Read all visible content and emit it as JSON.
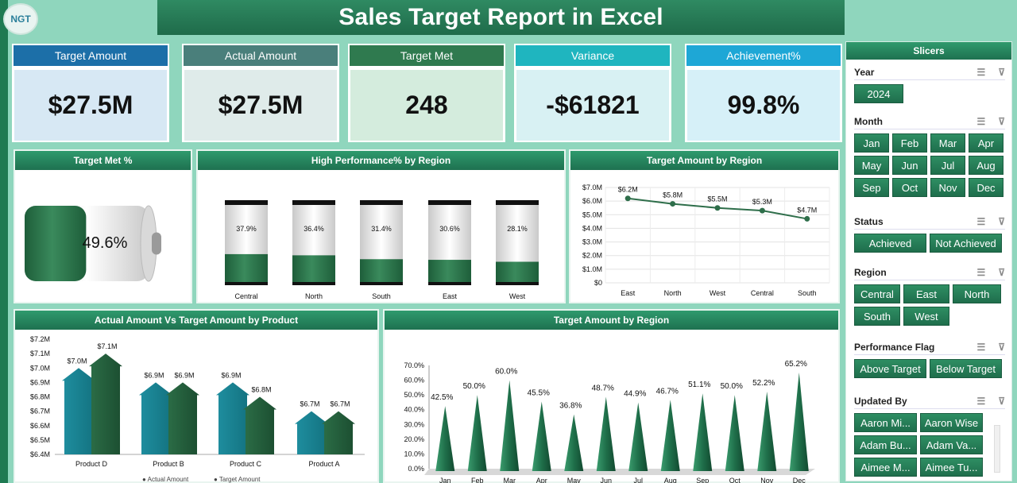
{
  "title": "Sales Target Report in Excel",
  "logo_text": "NGT",
  "kpis": [
    {
      "label": "Target Amount",
      "value": "$27.5M",
      "head": "#1c6fa8",
      "body": "#d7e8f4"
    },
    {
      "label": "Actual Amount",
      "value": "$27.5M",
      "head": "#4a7f7b",
      "body": "#dfebea"
    },
    {
      "label": "Target Met",
      "value": "248",
      "head": "#2f7a4f",
      "body": "#d4ecdd"
    },
    {
      "label": "Variance",
      "value": "-$61821",
      "head": "#1fb5bf",
      "body": "#d8f1f3"
    },
    {
      "label": "Achievement%",
      "value": "99.8%",
      "head": "#1ea7d6",
      "body": "#d6f0f8"
    }
  ],
  "panels": {
    "target_met_pct": "Target Met %",
    "high_perf": "High Performance% by Region",
    "target_by_region_line": "Target Amount by Region",
    "actual_vs_target": "Actual Amount Vs Target Amount by Product",
    "target_by_month": "Target Amount by Region"
  },
  "chart_data": [
    {
      "type": "bar",
      "name": "battery",
      "values": [
        49.6
      ],
      "labels": [
        "49.6%"
      ]
    },
    {
      "type": "bar",
      "categories": [
        "Central",
        "North",
        "South",
        "East",
        "West"
      ],
      "values": [
        37.9,
        36.4,
        31.4,
        30.6,
        28.1
      ],
      "labels": [
        "37.9%",
        "36.4%",
        "31.4%",
        "30.6%",
        "28.1%"
      ],
      "ylim": [
        0,
        100
      ]
    },
    {
      "type": "line",
      "categories": [
        "East",
        "North",
        "West",
        "Central",
        "South"
      ],
      "values": [
        6.2,
        5.8,
        5.5,
        5.3,
        4.7
      ],
      "labels": [
        "$6.2M",
        "$5.8M",
        "$5.5M",
        "$5.3M",
        "$4.7M"
      ],
      "yticks": [
        "$7.0M",
        "$6.0M",
        "$5.0M",
        "$4.0M",
        "$3.0M",
        "$2.0M",
        "$1.0M",
        "$0"
      ],
      "ylim": [
        0,
        7
      ]
    },
    {
      "type": "bar",
      "categories": [
        "Product D",
        "Product B",
        "Product C",
        "Product A"
      ],
      "series": [
        {
          "name": "Actual Amount",
          "values": [
            7.0,
            6.9,
            6.9,
            6.7
          ],
          "labels": [
            "$7.0M",
            "$6.9M",
            "$6.9M",
            "$6.7M"
          ]
        },
        {
          "name": "Target Amount",
          "values": [
            7.1,
            6.9,
            6.8,
            6.7
          ],
          "labels": [
            "$7.1M",
            "$6.9M",
            "$6.8M",
            "$6.7M"
          ]
        }
      ],
      "yticks": [
        "$7.2M",
        "$7.1M",
        "$7.0M",
        "$6.9M",
        "$6.8M",
        "$6.7M",
        "$6.6M",
        "$6.5M",
        "$6.4M"
      ],
      "ylim": [
        6.4,
        7.2
      ]
    },
    {
      "type": "bar",
      "categories": [
        "Jan",
        "Feb",
        "Mar",
        "Apr",
        "May",
        "Jun",
        "Jul",
        "Aug",
        "Sep",
        "Oct",
        "Nov",
        "Dec"
      ],
      "values": [
        42.5,
        50.0,
        60.0,
        45.5,
        36.8,
        48.7,
        44.9,
        46.7,
        51.1,
        50.0,
        52.2,
        65.2
      ],
      "labels": [
        "42.5%",
        "50.0%",
        "60.0%",
        "45.5%",
        "36.8%",
        "48.7%",
        "44.9%",
        "46.7%",
        "51.1%",
        "50.0%",
        "52.2%",
        "65.2%"
      ],
      "yticks": [
        "70.0%",
        "60.0%",
        "50.0%",
        "40.0%",
        "30.0%",
        "20.0%",
        "10.0%",
        "0.0%"
      ],
      "ylim": [
        0,
        70
      ]
    }
  ],
  "slicers": {
    "title": "Slicers",
    "sections": [
      {
        "label": "Year",
        "items": [
          "2024"
        ]
      },
      {
        "label": "Month",
        "items": [
          "Jan",
          "Feb",
          "Mar",
          "Apr",
          "May",
          "Jun",
          "Jul",
          "Aug",
          "Sep",
          "Oct",
          "Nov",
          "Dec"
        ]
      },
      {
        "label": "Status",
        "items": [
          "Achieved",
          "Not Achieved"
        ]
      },
      {
        "label": "Region",
        "items": [
          "Central",
          "East",
          "North",
          "South",
          "West"
        ]
      },
      {
        "label": "Performance Flag",
        "items": [
          "Above Target",
          "Below Target"
        ]
      },
      {
        "label": "Updated By",
        "items": [
          "Aaron Mi...",
          "Aaron Wise",
          "Adam Bu...",
          "Adam Va...",
          "Aimee M...",
          "Aimee Tu..."
        ]
      }
    ]
  }
}
